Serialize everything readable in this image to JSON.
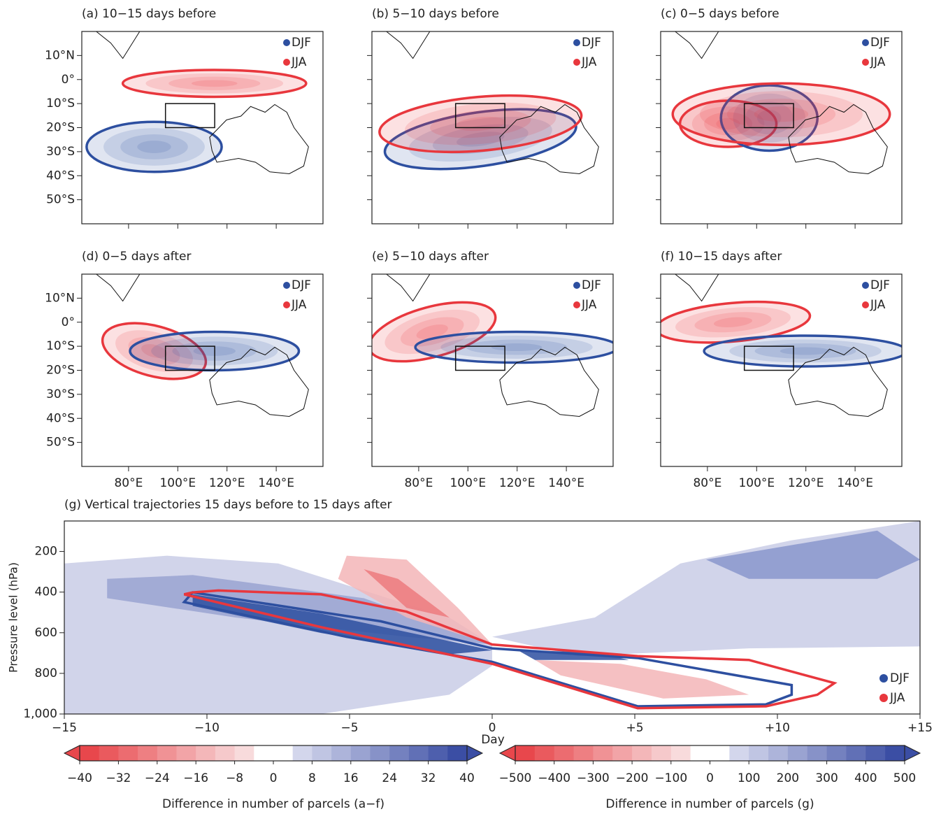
{
  "maps": {
    "xlim": [
      61,
      159
    ],
    "ylim": [
      -60,
      20
    ],
    "lat_ticks": [
      {
        "value": 10,
        "label": "10°N"
      },
      {
        "value": 0,
        "label": "0°"
      },
      {
        "value": -10,
        "label": "10°S"
      },
      {
        "value": -20,
        "label": "20°S"
      },
      {
        "value": -30,
        "label": "30°S"
      },
      {
        "value": -40,
        "label": "40°S"
      },
      {
        "value": -50,
        "label": "50°S"
      }
    ],
    "lon_ticks": [
      {
        "value": 80,
        "label": "80°E"
      },
      {
        "value": 100,
        "label": "100°E"
      },
      {
        "value": 120,
        "label": "120°E"
      },
      {
        "value": 140,
        "label": "140°E"
      }
    ],
    "target_box": {
      "lon": [
        95,
        115
      ],
      "lat": [
        -20,
        -10
      ]
    },
    "legend": [
      {
        "name": "DJF",
        "color": "#2d4fa0"
      },
      {
        "name": "JJA",
        "color": "#e8373d"
      }
    ],
    "panels": [
      {
        "title": "(a) 10−15  days before"
      },
      {
        "title": "(b) 5−10  days before"
      },
      {
        "title": "(c) 0−5  days before"
      },
      {
        "title": "(d) 0−5  days after"
      },
      {
        "title": "(e) 5−10  days after"
      },
      {
        "title": "(f) 10−15  days after"
      }
    ]
  },
  "vertical": {
    "title": "(g) Vertical  trajectories 15 days before to 15 days after",
    "ylabel": "Pressure level (hPa)",
    "xlabel": "Day",
    "xlim": [
      -15,
      15
    ],
    "ylim": [
      1000,
      50
    ],
    "xticks": [
      {
        "value": -15,
        "label": "−15"
      },
      {
        "value": -10,
        "label": "−10"
      },
      {
        "value": -5,
        "label": "−5"
      },
      0,
      {
        "value": 5,
        "label": "+5"
      },
      {
        "value": 10,
        "label": "+10"
      },
      {
        "value": 15,
        "label": "+15"
      }
    ],
    "yticks": [
      200,
      400,
      600,
      800,
      {
        "value": 1000,
        "label": "1,000"
      }
    ],
    "legend": [
      {
        "name": "DJF",
        "color": "#2d4fa0"
      },
      {
        "name": "JJA",
        "color": "#e8373d"
      }
    ]
  },
  "colorbars": [
    {
      "label": "Difference in  number of parcels (a−f)",
      "lim": [
        -40,
        40
      ],
      "ticks": [
        {
          "value": -40,
          "label": "−40"
        },
        {
          "value": -32,
          "label": "−32"
        },
        {
          "value": -24,
          "label": "−24"
        },
        {
          "value": -16,
          "label": "−16"
        },
        {
          "value": -8,
          "label": "−8"
        },
        0,
        8,
        16,
        24,
        32,
        40
      ]
    },
    {
      "label": "Difference in number of parcels (g)",
      "lim": [
        -500,
        500
      ],
      "ticks": [
        {
          "value": -500,
          "label": "−500"
        },
        {
          "value": -400,
          "label": "−400"
        },
        {
          "value": -300,
          "label": "−300"
        },
        {
          "value": -200,
          "label": "−200"
        },
        {
          "value": -100,
          "label": "−100"
        },
        0,
        100,
        200,
        300,
        400,
        500
      ]
    }
  ]
}
